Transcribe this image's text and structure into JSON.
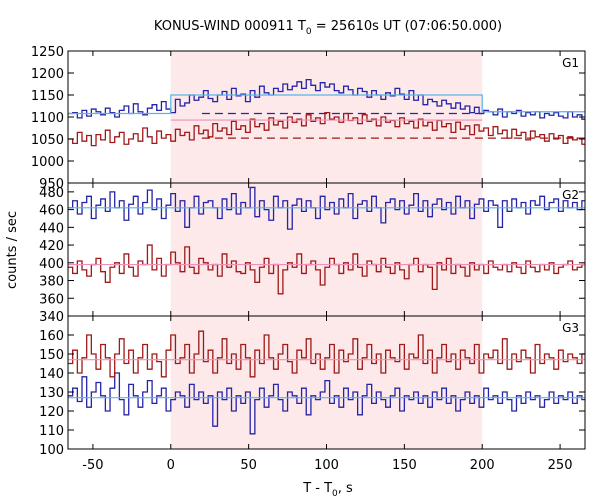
{
  "chart_data": {
    "type": "line",
    "title_main": "KONUS-WIND 000911 T",
    "title_sub": "0",
    "title_rest": " = 25610s UT (07:06:50.000)",
    "xlabel_main": "T - T",
    "xlabel_sub": "0",
    "xlabel_rest": ", s",
    "ylabel": "counts / sec",
    "xlim": [
      -66,
      266
    ],
    "xticks": [
      -50,
      0,
      50,
      100,
      150,
      200,
      250
    ],
    "shaded_interval": [
      0,
      200
    ],
    "colors": {
      "shade": "#fde8ea",
      "series_blue": "#2424a8",
      "series_red": "#a01818",
      "fit_cyan": "#5ab4e6",
      "fit_pink": "#f090b8",
      "background_dash": "#a01818"
    },
    "panels": [
      {
        "label": "G1",
        "ylim": [
          950,
          1250
        ],
        "yticks": [
          950,
          1000,
          1050,
          1100,
          1150,
          1200,
          1250
        ],
        "blue": {
          "start": -66,
          "step": 3,
          "values": [
            1108,
            1110,
            1098,
            1115,
            1102,
            1118,
            1112,
            1105,
            1120,
            1110,
            1100,
            1115,
            1125,
            1108,
            1130,
            1112,
            1105,
            1120,
            1128,
            1115,
            1135,
            1118,
            1110,
            1140,
            1125,
            1132,
            1150,
            1138,
            1145,
            1160,
            1142,
            1135,
            1150,
            1158,
            1140,
            1165,
            1148,
            1152,
            1135,
            1160,
            1145,
            1170,
            1155,
            1150,
            1165,
            1158,
            1175,
            1162,
            1170,
            1180,
            1165,
            1185,
            1172,
            1160,
            1178,
            1168,
            1175,
            1160,
            1155,
            1170,
            1162,
            1150,
            1165,
            1158,
            1145,
            1160,
            1150,
            1140,
            1155,
            1148,
            1165,
            1152,
            1140,
            1160,
            1138,
            1150,
            1128,
            1140,
            1135,
            1125,
            1138,
            1130,
            1120,
            1132,
            1118,
            1125,
            1110,
            1122,
            1108,
            1115,
            1112,
            1105,
            1118,
            1100,
            1112,
            1108,
            1115,
            1102,
            1110,
            1105,
            1112,
            1098,
            1108,
            1104,
            1110,
            1102,
            1098,
            1112,
            1100,
            1105,
            1095
          ]
        },
        "red": {
          "start": -66,
          "step": 3,
          "values": [
            1050,
            1040,
            1065,
            1045,
            1058,
            1035,
            1060,
            1048,
            1070,
            1042,
            1055,
            1065,
            1038,
            1050,
            1062,
            1045,
            1075,
            1055,
            1040,
            1068,
            1052,
            1060,
            1045,
            1072,
            1058,
            1065,
            1048,
            1080,
            1062,
            1070,
            1055,
            1085,
            1068,
            1075,
            1060,
            1090,
            1072,
            1080,
            1065,
            1095,
            1078,
            1085,
            1070,
            1098,
            1082,
            1090,
            1075,
            1100,
            1088,
            1095,
            1080,
            1105,
            1090,
            1098,
            1085,
            1110,
            1095,
            1100,
            1088,
            1108,
            1092,
            1098,
            1085,
            1105,
            1090,
            1095,
            1080,
            1100,
            1088,
            1092,
            1078,
            1098,
            1085,
            1090,
            1075,
            1095,
            1080,
            1088,
            1070,
            1092,
            1078,
            1085,
            1065,
            1088,
            1072,
            1080,
            1060,
            1082,
            1068,
            1075,
            1058,
            1078,
            1062,
            1070,
            1052,
            1072,
            1058,
            1065,
            1048,
            1068,
            1055,
            1060,
            1045,
            1062,
            1050,
            1058,
            1040,
            1055,
            1048,
            1052,
            1038
          ]
        },
        "fit_cyan": {
          "x": [
            -66,
            0,
            0,
            200,
            200,
            266
          ],
          "y": [
            1108,
            1108,
            1150,
            1150,
            1112,
            1112
          ]
        },
        "fit_pink": {
          "x": [
            0,
            200
          ],
          "y": [
            1093,
            1093
          ]
        },
        "dash_blue": {
          "x": [
            20,
            200
          ],
          "y": [
            1108,
            1108
          ]
        },
        "dash_red": {
          "x": [
            20,
            266
          ],
          "y": [
            1052,
            1052
          ]
        }
      },
      {
        "label": "G2",
        "ylim": [
          340,
          490
        ],
        "yticks": [
          340,
          360,
          380,
          400,
          420,
          440,
          460,
          480
        ],
        "blue": {
          "start": -66,
          "step": 3,
          "values": [
            462,
            470,
            455,
            468,
            475,
            450,
            465,
            472,
            458,
            480,
            462,
            470,
            448,
            466,
            475,
            455,
            468,
            482,
            460,
            472,
            450,
            465,
            478,
            458,
            470,
            440,
            462,
            475,
            455,
            468,
            470,
            462,
            450,
            472,
            460,
            478,
            455,
            468,
            462,
            485,
            452,
            470,
            460,
            448,
            475,
            462,
            470,
            438,
            465,
            472,
            458,
            470,
            462,
            450,
            475,
            460,
            468,
            455,
            472,
            462,
            478,
            450,
            466,
            470,
            458,
            475,
            462,
            445,
            468,
            472,
            460,
            470,
            455,
            465,
            478,
            458,
            470,
            452,
            466,
            472,
            460,
            468,
            455,
            475,
            462,
            470,
            450,
            466,
            472,
            458,
            470,
            465,
            440,
            470,
            458,
            472,
            462,
            468,
            455,
            470,
            465,
            475,
            460,
            468,
            472,
            458,
            470,
            462,
            468,
            460,
            470
          ]
        },
        "red": {
          "start": -66,
          "step": 3,
          "values": [
            395,
            388,
            402,
            392,
            385,
            398,
            405,
            390,
            378,
            395,
            400,
            388,
            410,
            395,
            385,
            402,
            398,
            420,
            392,
            405,
            385,
            398,
            412,
            400,
            390,
            418,
            395,
            388,
            405,
            400,
            392,
            398,
            385,
            410,
            395,
            402,
            390,
            388,
            400,
            392,
            378,
            395,
            405,
            388,
            398,
            365,
            392,
            400,
            395,
            410,
            388,
            398,
            402,
            392,
            375,
            395,
            405,
            398,
            388,
            400,
            392,
            410,
            395,
            385,
            402,
            398,
            390,
            405,
            395,
            388,
            400,
            392,
            382,
            398,
            405,
            390,
            398,
            395,
            370,
            400,
            392,
            405,
            388,
            398,
            395,
            385,
            400,
            392,
            398,
            388,
            402,
            395,
            392,
            398,
            390,
            400,
            395,
            388,
            402,
            395,
            390,
            398,
            392,
            400,
            388,
            395,
            398,
            402,
            392,
            395,
            398
          ]
        },
        "fit_cyan": {
          "x": [
            -66,
            266
          ],
          "y": [
            462,
            462
          ]
        },
        "fit_pink": {
          "x": [
            -66,
            266
          ],
          "y": [
            398,
            398
          ]
        }
      },
      {
        "label": "G3",
        "ylim": [
          100,
          170
        ],
        "yticks": [
          100,
          110,
          120,
          130,
          140,
          150,
          160
        ],
        "blue": {
          "start": -66,
          "step": 3,
          "values": [
            128,
            132,
            125,
            138,
            122,
            130,
            135,
            128,
            120,
            132,
            140,
            126,
            118,
            134,
            128,
            122,
            130,
            136,
            124,
            128,
            132,
            120,
            126,
            130,
            128,
            122,
            134,
            126,
            130,
            124,
            128,
            112,
            130,
            126,
            132,
            120,
            128,
            124,
            130,
            108,
            126,
            132,
            122,
            128,
            134,
            126,
            120,
            130,
            128,
            124,
            132,
            118,
            128,
            126,
            130,
            136,
            124,
            128,
            122,
            132,
            126,
            130,
            118,
            128,
            134,
            124,
            130,
            126,
            122,
            128,
            132,
            120,
            128,
            126,
            130,
            124,
            128,
            122,
            130,
            126,
            132,
            124,
            128,
            120,
            126,
            130,
            124,
            128,
            122,
            132,
            126,
            128,
            124,
            130,
            126,
            120,
            128,
            124,
            130,
            126,
            128,
            122,
            126,
            130,
            124,
            128,
            126,
            130,
            124,
            128,
            126
          ]
        },
        "red": {
          "start": -66,
          "step": 3,
          "values": [
            145,
            152,
            140,
            148,
            160,
            150,
            142,
            155,
            148,
            138,
            150,
            158,
            145,
            152,
            140,
            148,
            155,
            142,
            150,
            146,
            138,
            152,
            160,
            145,
            148,
            155,
            140,
            150,
            162,
            146,
            152,
            140,
            148,
            158,
            145,
            150,
            142,
            155,
            148,
            138,
            152,
            145,
            160,
            148,
            142,
            150,
            155,
            146,
            140,
            152,
            148,
            158,
            145,
            150,
            142,
            148,
            155,
            140,
            152,
            146,
            150,
            158,
            142,
            148,
            155,
            145,
            150,
            140,
            152,
            148,
            146,
            155,
            142,
            150,
            148,
            160,
            145,
            152,
            140,
            148,
            155,
            146,
            150,
            142,
            152,
            148,
            145,
            155,
            140,
            150,
            148,
            152,
            145,
            158,
            142,
            150,
            146,
            152,
            148,
            140,
            155,
            145,
            150,
            148,
            142,
            152,
            146,
            150,
            148,
            145,
            150
          ]
        },
        "fit_cyan": {
          "x": [
            -66,
            266
          ],
          "y": [
            127,
            127
          ]
        },
        "fit_pink": {
          "x": [
            -66,
            266
          ],
          "y": [
            147,
            147
          ]
        }
      }
    ]
  }
}
